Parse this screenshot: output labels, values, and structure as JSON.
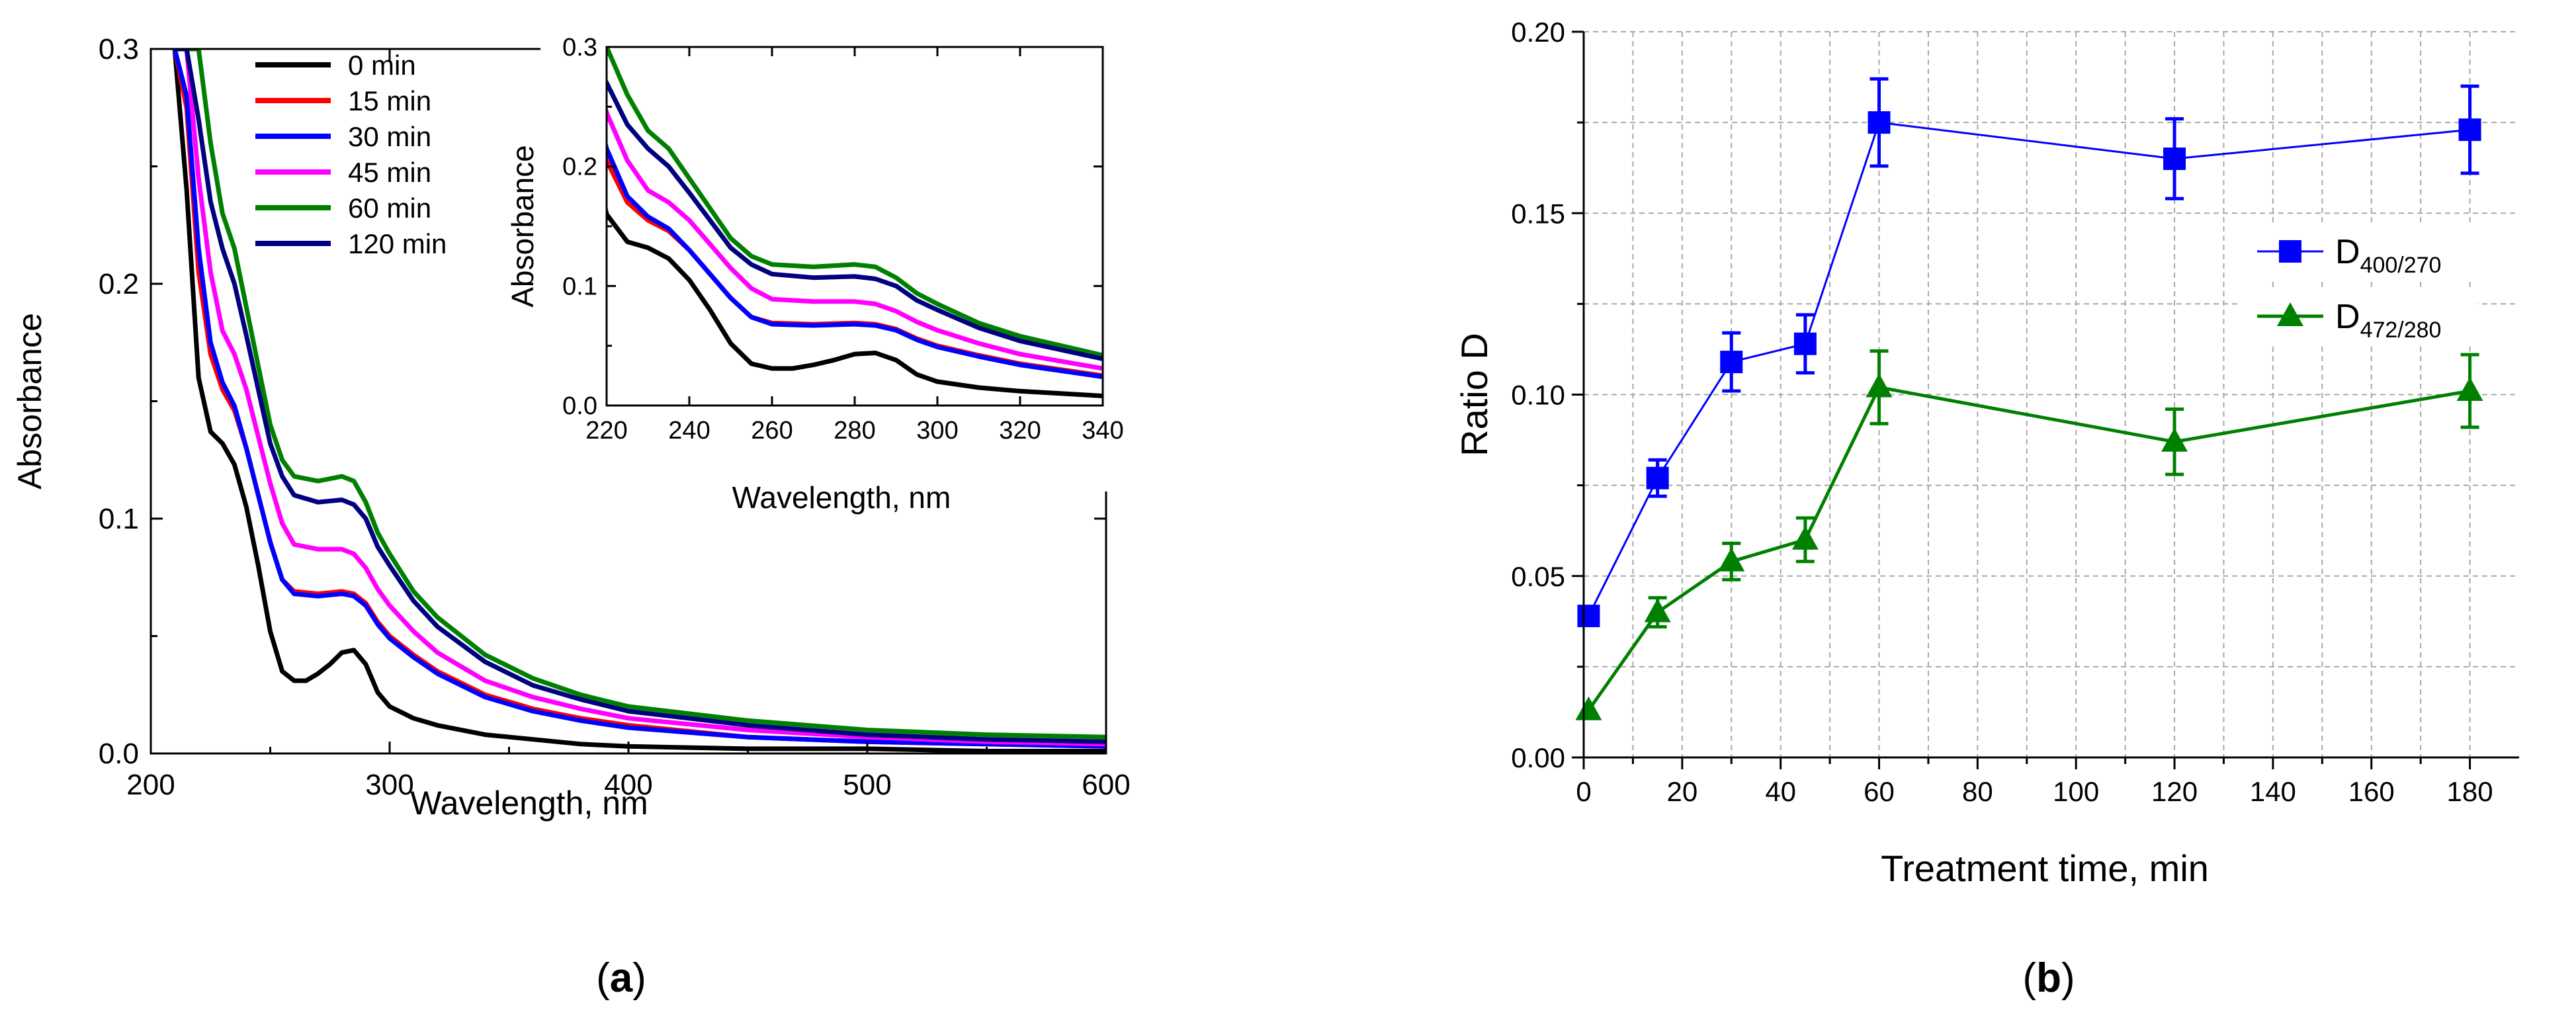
{
  "chart_data": [
    {
      "id": "a",
      "type": "line",
      "panel_label": "(a)",
      "panel_letter": "a",
      "xlabel": "Wavelength, nm",
      "ylabel": "Absorbance",
      "xlim": [
        200,
        600
      ],
      "ylim": [
        0,
        0.3
      ],
      "xticks": [
        200,
        300,
        400,
        500,
        600
      ],
      "yticks": [
        0.0,
        0.1,
        0.2,
        0.3
      ],
      "ytick_labels": [
        "0.0",
        "0.1",
        "0.2",
        "0.3"
      ],
      "legend_position": "top-left",
      "series": [
        {
          "name": "0 min",
          "color": "#000000",
          "x": [
            210,
            215,
            220,
            225,
            230,
            235,
            240,
            245,
            250,
            255,
            260,
            265,
            270,
            275,
            280,
            285,
            290,
            295,
            300,
            310,
            320,
            340,
            360,
            380,
            400,
            450,
            500,
            550,
            600
          ],
          "y": [
            0.3,
            0.24,
            0.16,
            0.137,
            0.132,
            0.123,
            0.105,
            0.08,
            0.052,
            0.035,
            0.031,
            0.031,
            0.034,
            0.038,
            0.043,
            0.044,
            0.038,
            0.026,
            0.02,
            0.015,
            0.012,
            0.008,
            0.006,
            0.004,
            0.003,
            0.002,
            0.002,
            0.001,
            0.001
          ]
        },
        {
          "name": "15 min",
          "color": "#ff0000",
          "x": [
            210,
            215,
            220,
            225,
            230,
            235,
            240,
            245,
            250,
            255,
            260,
            270,
            280,
            285,
            290,
            295,
            300,
            310,
            320,
            340,
            360,
            380,
            400,
            450,
            500,
            550,
            600
          ],
          "y": [
            0.3,
            0.275,
            0.205,
            0.17,
            0.155,
            0.146,
            0.13,
            0.11,
            0.09,
            0.074,
            0.069,
            0.068,
            0.069,
            0.068,
            0.064,
            0.056,
            0.05,
            0.042,
            0.035,
            0.025,
            0.019,
            0.015,
            0.012,
            0.007,
            0.005,
            0.004,
            0.003
          ]
        },
        {
          "name": "30 min",
          "color": "#0000ff",
          "x": [
            210,
            215,
            220,
            225,
            230,
            235,
            240,
            245,
            250,
            255,
            260,
            270,
            280,
            285,
            290,
            295,
            300,
            310,
            320,
            340,
            360,
            380,
            400,
            450,
            500,
            550,
            600
          ],
          "y": [
            0.3,
            0.28,
            0.215,
            0.175,
            0.158,
            0.148,
            0.13,
            0.11,
            0.09,
            0.074,
            0.068,
            0.067,
            0.068,
            0.067,
            0.063,
            0.055,
            0.049,
            0.041,
            0.034,
            0.024,
            0.018,
            0.014,
            0.011,
            0.007,
            0.005,
            0.004,
            0.003
          ]
        },
        {
          "name": "45 min",
          "color": "#ff00ff",
          "x": [
            210,
            215,
            220,
            225,
            230,
            235,
            240,
            245,
            250,
            255,
            260,
            270,
            280,
            285,
            290,
            295,
            300,
            310,
            320,
            340,
            360,
            380,
            400,
            450,
            500,
            550,
            600
          ],
          "y": [
            0.3,
            0.3,
            0.245,
            0.205,
            0.18,
            0.17,
            0.155,
            0.135,
            0.115,
            0.098,
            0.089,
            0.087,
            0.087,
            0.085,
            0.079,
            0.07,
            0.063,
            0.052,
            0.043,
            0.031,
            0.024,
            0.019,
            0.015,
            0.01,
            0.007,
            0.005,
            0.004
          ]
        },
        {
          "name": "60 min",
          "color": "#008000",
          "x": [
            210,
            215,
            220,
            225,
            230,
            235,
            240,
            245,
            250,
            255,
            260,
            270,
            280,
            285,
            290,
            295,
            300,
            310,
            320,
            340,
            360,
            380,
            400,
            450,
            500,
            550,
            600
          ],
          "y": [
            0.3,
            0.3,
            0.3,
            0.26,
            0.23,
            0.215,
            0.19,
            0.165,
            0.14,
            0.125,
            0.118,
            0.116,
            0.118,
            0.116,
            0.107,
            0.094,
            0.085,
            0.069,
            0.058,
            0.042,
            0.032,
            0.025,
            0.02,
            0.014,
            0.01,
            0.008,
            0.007
          ]
        },
        {
          "name": "120 min",
          "color": "#000080",
          "x": [
            210,
            215,
            220,
            225,
            230,
            235,
            240,
            245,
            250,
            255,
            260,
            270,
            280,
            285,
            290,
            295,
            300,
            310,
            320,
            340,
            360,
            380,
            400,
            450,
            500,
            550,
            600
          ],
          "y": [
            0.3,
            0.3,
            0.27,
            0.235,
            0.215,
            0.2,
            0.178,
            0.155,
            0.132,
            0.118,
            0.11,
            0.107,
            0.108,
            0.106,
            0.1,
            0.088,
            0.08,
            0.065,
            0.054,
            0.039,
            0.029,
            0.023,
            0.018,
            0.012,
            0.008,
            0.006,
            0.005
          ]
        }
      ]
    },
    {
      "id": "a_inset",
      "type": "line",
      "xlabel": "Wavelength, nm",
      "ylabel": "Absorbance",
      "xlim": [
        220,
        340
      ],
      "ylim": [
        0,
        0.3
      ],
      "xticks": [
        220,
        240,
        260,
        280,
        300,
        320,
        340
      ],
      "yticks": [
        0.0,
        0.1,
        0.2,
        0.3
      ],
      "ytick_labels": [
        "0.0",
        "0.1",
        "0.2",
        "0.3"
      ],
      "series_source": "same series as panel (a), x range 220-340 nm"
    },
    {
      "id": "b",
      "type": "line",
      "panel_label": "(b)",
      "panel_letter": "b",
      "xlabel": "Treatment time, min",
      "ylabel": "Ratio D",
      "xlim": [
        0,
        190
      ],
      "ylim": [
        0,
        0.2
      ],
      "xticks": [
        0,
        20,
        40,
        60,
        80,
        100,
        120,
        140,
        160,
        180
      ],
      "yticks": [
        0.0,
        0.05,
        0.1,
        0.15,
        0.2
      ],
      "ytick_labels": [
        "0.00",
        "0.05",
        "0.10",
        "0.15",
        "0.20"
      ],
      "grid": true,
      "legend_position": "right",
      "series": [
        {
          "name": "D400/270",
          "legend_main": "D",
          "legend_sub": "400/270",
          "color": "#0000ff",
          "marker": "square",
          "x": [
            1,
            15,
            30,
            45,
            60,
            120,
            180
          ],
          "y": [
            0.039,
            0.077,
            0.109,
            0.114,
            0.175,
            0.165,
            0.173
          ],
          "err": [
            0.0,
            0.005,
            0.008,
            0.008,
            0.012,
            0.011,
            0.012
          ]
        },
        {
          "name": "D472/280",
          "legend_main": "D",
          "legend_sub": "472/280",
          "color": "#008000",
          "marker": "triangle",
          "x": [
            1,
            15,
            30,
            45,
            60,
            120,
            180
          ],
          "y": [
            0.013,
            0.04,
            0.054,
            0.06,
            0.102,
            0.087,
            0.101
          ],
          "err": [
            0.0,
            0.004,
            0.005,
            0.006,
            0.01,
            0.009,
            0.01
          ]
        }
      ]
    }
  ]
}
